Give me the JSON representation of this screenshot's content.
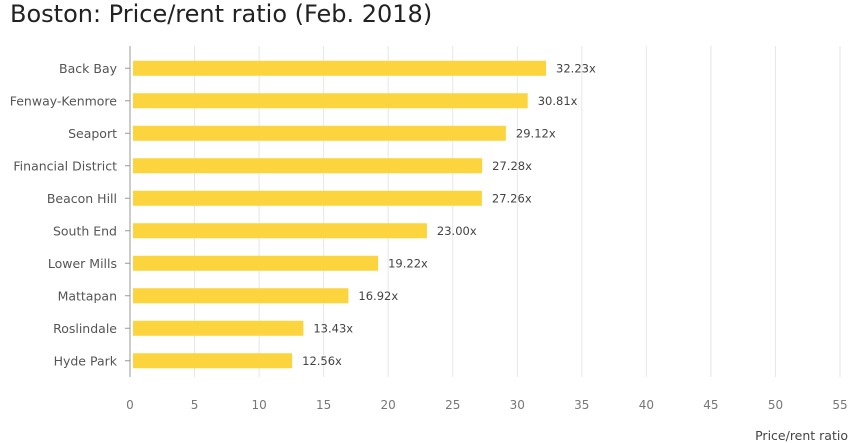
{
  "title": "Boston: Price/rent ratio (Feb. 2018)",
  "colors": {
    "bar": "#FCD43D",
    "grid": "#E6E6E6",
    "axis": "#999999"
  },
  "chart_data": {
    "type": "bar",
    "orientation": "horizontal",
    "title": "Boston: Price/rent ratio (Feb. 2018)",
    "xlabel": "Price/rent ratio",
    "ylabel": "",
    "categories": [
      "Back Bay",
      "Fenway-Kenmore",
      "Seaport",
      "Financial District",
      "Beacon Hill",
      "South End",
      "Lower Mills",
      "Mattapan",
      "Roslindale",
      "Hyde Park"
    ],
    "values": [
      32.23,
      30.81,
      29.12,
      27.28,
      27.26,
      23.0,
      19.22,
      16.92,
      13.43,
      12.56
    ],
    "data_labels": [
      "32.23x",
      "30.81x",
      "29.12x",
      "27.28x",
      "27.26x",
      "23.00x",
      "19.22x",
      "16.92x",
      "13.43x",
      "12.56x"
    ],
    "xlim": [
      0,
      55
    ],
    "xticks": [
      "0",
      "5",
      "10",
      "15",
      "20",
      "25",
      "30",
      "35",
      "40",
      "45",
      "50",
      "55"
    ],
    "grid": true,
    "legend": "none"
  }
}
